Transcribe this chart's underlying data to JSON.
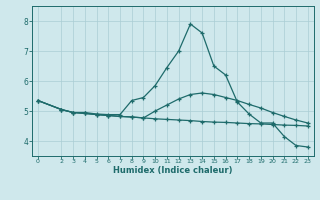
{
  "xlabel": "Humidex (Indice chaleur)",
  "xlim": [
    -0.5,
    23.5
  ],
  "ylim": [
    3.5,
    8.5
  ],
  "yticks": [
    4,
    5,
    6,
    7,
    8
  ],
  "xticks": [
    0,
    2,
    3,
    4,
    5,
    6,
    7,
    8,
    9,
    10,
    11,
    12,
    13,
    14,
    15,
    16,
    17,
    18,
    19,
    20,
    21,
    22,
    23
  ],
  "bg_color": "#cfe8ec",
  "grid_color": "#aacdd4",
  "line_color": "#1e6b6b",
  "line1_x": [
    0,
    2,
    3,
    4,
    5,
    6,
    7,
    8,
    9,
    10,
    11,
    12,
    13,
    14,
    15,
    16,
    17,
    18,
    19,
    20,
    21,
    22,
    23
  ],
  "line1_y": [
    5.35,
    5.05,
    4.95,
    4.95,
    4.9,
    4.88,
    4.88,
    5.35,
    5.45,
    5.85,
    6.45,
    7.0,
    7.9,
    7.6,
    6.5,
    6.2,
    5.3,
    4.9,
    4.6,
    4.6,
    4.15,
    3.85,
    3.8
  ],
  "line2_x": [
    0,
    2,
    3,
    4,
    5,
    6,
    7,
    8,
    9,
    10,
    11,
    12,
    13,
    14,
    15,
    16,
    17,
    18,
    19,
    20,
    21,
    22,
    23
  ],
  "line2_y": [
    5.35,
    5.05,
    4.95,
    4.92,
    4.88,
    4.85,
    4.82,
    4.8,
    4.77,
    4.74,
    4.72,
    4.7,
    4.68,
    4.65,
    4.63,
    4.62,
    4.6,
    4.58,
    4.57,
    4.55,
    4.53,
    4.52,
    4.5
  ],
  "line3_x": [
    0,
    2,
    3,
    4,
    5,
    6,
    7,
    8,
    9,
    10,
    11,
    12,
    13,
    14,
    15,
    16,
    17,
    18,
    19,
    20,
    21,
    22,
    23
  ],
  "line3_y": [
    5.35,
    5.05,
    4.95,
    4.92,
    4.88,
    4.85,
    4.82,
    4.8,
    4.77,
    5.0,
    5.2,
    5.4,
    5.55,
    5.6,
    5.55,
    5.45,
    5.35,
    5.22,
    5.1,
    4.95,
    4.82,
    4.7,
    4.6
  ]
}
